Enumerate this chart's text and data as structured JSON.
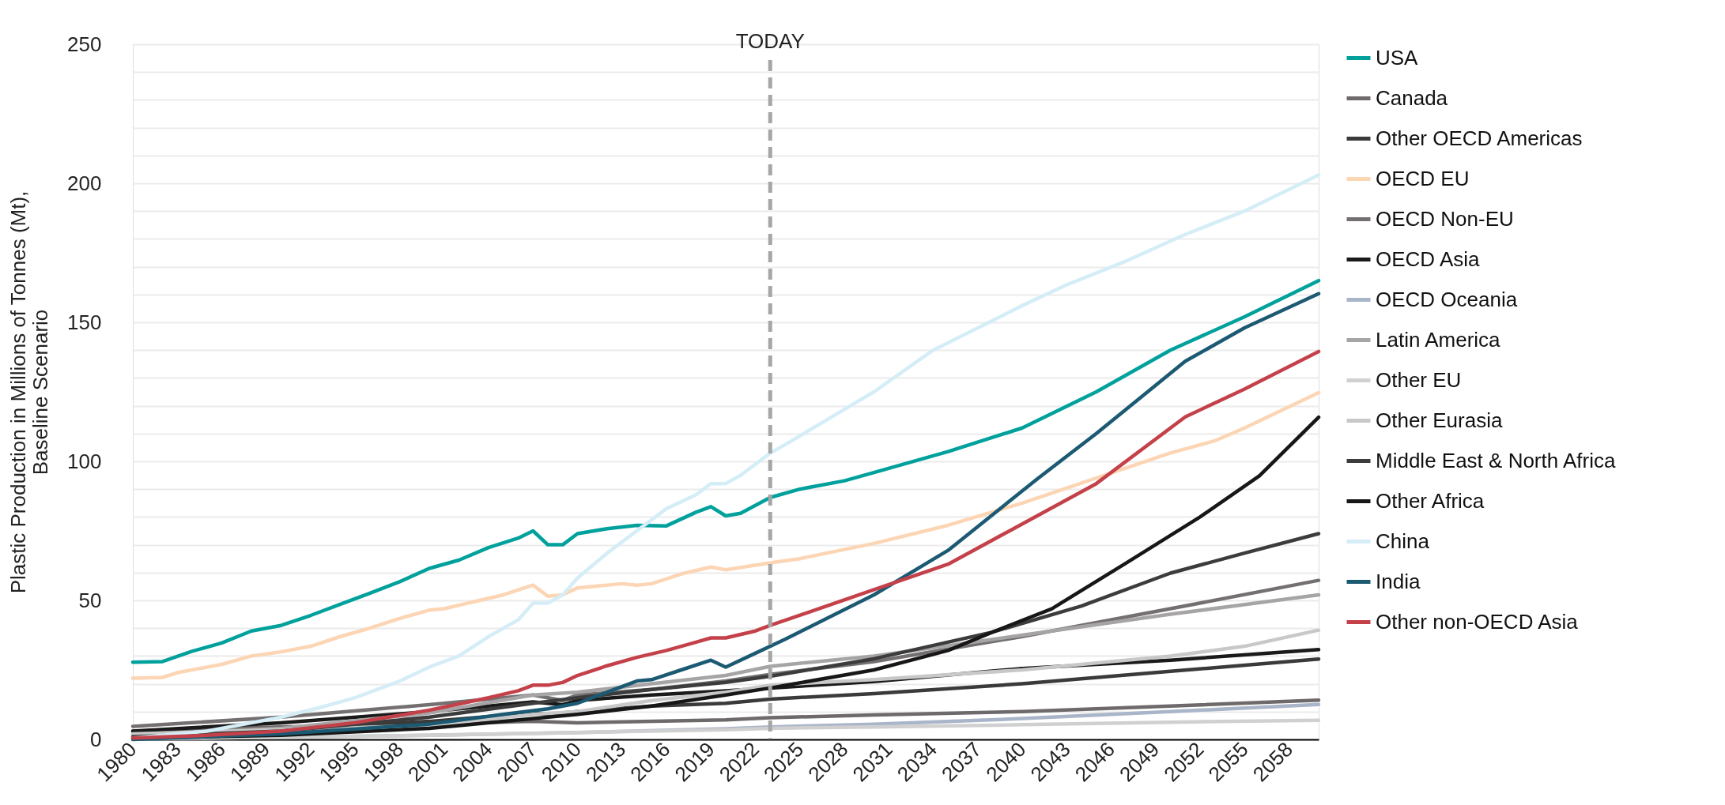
{
  "chart_data": {
    "type": "line",
    "ylabel": "Plastic Production in Millions of Tonnes (Mt), Baseline Scenario",
    "xlim": [
      1980,
      2060
    ],
    "xticks": [
      1980,
      1983,
      1986,
      1989,
      1992,
      1995,
      1998,
      2001,
      2004,
      2007,
      2010,
      2013,
      2016,
      2019,
      2022,
      2025,
      2028,
      2031,
      2034,
      2037,
      2040,
      2043,
      2046,
      2049,
      2052,
      2055,
      2058
    ],
    "ylim": [
      0,
      250
    ],
    "yticks": [
      0,
      {
        "value": 10,
        "label": null
      },
      {
        "value": 20,
        "label": null
      },
      {
        "value": 30,
        "label": null
      },
      {
        "value": 40,
        "label": null
      },
      50,
      {
        "value": 60,
        "label": null
      },
      {
        "value": 70,
        "label": null
      },
      {
        "value": 80,
        "label": null
      },
      {
        "value": 90,
        "label": null
      },
      100,
      {
        "value": 110,
        "label": null
      },
      {
        "value": 120,
        "label": null
      },
      {
        "value": 130,
        "label": null
      },
      {
        "value": 140,
        "label": null
      },
      150,
      {
        "value": 160,
        "label": null
      },
      {
        "value": 170,
        "label": null
      },
      {
        "value": 180,
        "label": null
      },
      {
        "value": 190,
        "label": null
      },
      200,
      {
        "value": 210,
        "label": null
      },
      {
        "value": 220,
        "label": null
      },
      {
        "value": 230,
        "label": null
      },
      {
        "value": 240,
        "label": null
      },
      250
    ],
    "grid": "y",
    "legend": "right",
    "marker": "none",
    "line_style": "solid",
    "ref_lines": [
      {
        "axis": "x",
        "value": 2023,
        "label": "TODAY",
        "color": "#a6a6a6",
        "line_style": "dashed"
      }
    ],
    "series": [
      {
        "name": "USA",
        "color": "#00a19c",
        "x": [
          1980,
          1982,
          1984,
          1986,
          1988,
          1990,
          1992,
          1994,
          1996,
          1998,
          2000,
          2002,
          2004,
          2006,
          2007,
          2008,
          2009,
          2010,
          2012,
          2014,
          2016,
          2018,
          2019,
          2020,
          2021,
          2023,
          2025,
          2028,
          2030,
          2035,
          2040,
          2045,
          2050,
          2055,
          2060
        ],
        "values": [
          27.8,
          28,
          31.7,
          34.7,
          39,
          41,
          44.6,
          48.6,
          52.6,
          56.7,
          61.5,
          64.5,
          69,
          72.4,
          75,
          70,
          70,
          74,
          75.8,
          77,
          76.8,
          81.7,
          83.7,
          80.4,
          81.3,
          87,
          90,
          93,
          96,
          103.5,
          112,
          125,
          140,
          152,
          165
        ]
      },
      {
        "name": "Canada",
        "color": "#6e6a6b",
        "x": [
          1980,
          1990,
          2000,
          2007,
          2010,
          2020,
          2023,
          2030,
          2040,
          2050,
          2060
        ],
        "values": [
          3,
          4.5,
          5.5,
          6.5,
          6,
          7,
          7.8,
          8.8,
          10,
          12,
          14.1
        ]
      },
      {
        "name": "Other OECD Americas",
        "color": "#3a3a3a",
        "x": [
          1980,
          1990,
          2000,
          2007,
          2008,
          2010,
          2015,
          2020,
          2023,
          2030,
          2040,
          2050,
          2060
        ],
        "values": [
          1,
          3.5,
          6.5,
          9.5,
          9,
          10,
          12,
          13,
          14.5,
          16.5,
          20,
          24.5,
          28.9
        ]
      },
      {
        "name": "OECD EU",
        "color": "#fcd5b4",
        "x": [
          1980,
          1982,
          1983,
          1986,
          1988,
          1990,
          1992,
          1994,
          1996,
          1998,
          2000,
          2001,
          2003,
          2005,
          2007,
          2008,
          2009,
          2010,
          2013,
          2014,
          2015,
          2017,
          2019,
          2020,
          2023,
          2025,
          2030,
          2035,
          2040,
          2045,
          2050,
          2053,
          2055,
          2060
        ],
        "values": [
          22,
          22.3,
          24,
          27,
          30,
          31.5,
          33.5,
          37,
          40,
          43.5,
          46.5,
          47,
          49.5,
          52,
          55.5,
          51.5,
          52,
          54.5,
          56,
          55.5,
          56,
          59.5,
          62,
          61,
          63.5,
          65,
          70.5,
          77,
          85,
          94,
          103,
          107.4,
          112,
          124.7
        ]
      },
      {
        "name": "OECD Non-EU",
        "color": "#747071",
        "x": [
          1980,
          1990,
          2000,
          2007,
          2009,
          2010,
          2015,
          2020,
          2023,
          2030,
          2040,
          2050,
          2060
        ],
        "values": [
          4.7,
          8,
          12.5,
          16,
          14,
          16,
          18,
          21,
          23.4,
          28,
          37,
          47,
          57.2
        ]
      },
      {
        "name": "OECD Asia",
        "color": "#1a1a1a",
        "x": [
          1980,
          1990,
          2000,
          2007,
          2009,
          2010,
          2015,
          2020,
          2023,
          2030,
          2040,
          2050,
          2060
        ],
        "values": [
          3,
          6,
          10,
          13.5,
          12.5,
          14,
          16,
          17.5,
          18.5,
          20.8,
          25.5,
          28.5,
          32.3
        ]
      },
      {
        "name": "OECD Oceania",
        "color": "#a9b5c8",
        "x": [
          1980,
          1990,
          2000,
          2010,
          2020,
          2023,
          2030,
          2040,
          2050,
          2060
        ],
        "values": [
          0.2,
          0.8,
          1.5,
          2.5,
          3.8,
          4.5,
          5.5,
          7.5,
          10,
          12.6
        ]
      },
      {
        "name": "Latin America",
        "color": "#a6a4a5",
        "x": [
          1980,
          1990,
          2000,
          2007,
          2010,
          2015,
          2020,
          2023,
          2030,
          2040,
          2050,
          2060
        ],
        "values": [
          1.5,
          4,
          9.5,
          16,
          17,
          20,
          23,
          26.3,
          30,
          37.5,
          45,
          52
        ]
      },
      {
        "name": "Other EU",
        "color": "#d0d0d0",
        "x": [
          1980,
          1990,
          2000,
          2010,
          2020,
          2023,
          2030,
          2040,
          2050,
          2060
        ],
        "values": [
          0.3,
          0.8,
          1.5,
          2.5,
          3.5,
          4,
          4.5,
          5.3,
          6.2,
          6.9
        ]
      },
      {
        "name": "Other Eurasia",
        "color": "#c8c8c8",
        "x": [
          1980,
          1990,
          2000,
          2007,
          2010,
          2015,
          2020,
          2023,
          2030,
          2040,
          2050,
          2055,
          2060
        ],
        "values": [
          2,
          3.5,
          5,
          9,
          10,
          14,
          17,
          19.5,
          21.5,
          25,
          30,
          33.5,
          39.3
        ]
      },
      {
        "name": "Middle East & North Africa",
        "color": "#3c3c3c",
        "x": [
          1980,
          1990,
          2000,
          2007,
          2010,
          2015,
          2020,
          2023,
          2030,
          2038,
          2044,
          2050,
          2055,
          2060
        ],
        "values": [
          1,
          3,
          8,
          13,
          15,
          18,
          20.5,
          22.7,
          29,
          38.6,
          48,
          59.8,
          67,
          74
        ]
      },
      {
        "name": "Other Africa",
        "color": "#171717",
        "x": [
          1980,
          1990,
          2000,
          2010,
          2015,
          2020,
          2023,
          2030,
          2035,
          2038,
          2042,
          2047,
          2052,
          2056,
          2060
        ],
        "values": [
          0.5,
          1.5,
          4,
          9,
          12,
          16,
          18.5,
          25,
          32,
          38.6,
          47,
          63.4,
          80,
          94.8,
          115.9
        ]
      },
      {
        "name": "China",
        "color": "#d4edf7",
        "x": [
          1980,
          1985,
          1990,
          1993,
          1995,
          1998,
          2000,
          2002,
          2004,
          2006,
          2007,
          2008,
          2009,
          2010,
          2012,
          2014,
          2016,
          2018,
          2019,
          2020,
          2021,
          2023,
          2024,
          2030,
          2034,
          2040,
          2043,
          2047,
          2051,
          2055,
          2060
        ],
        "values": [
          0.5,
          3,
          8,
          12,
          15,
          21,
          26,
          30,
          37,
          43,
          49,
          49,
          52,
          58,
          67,
          75,
          83,
          88,
          92,
          92,
          95,
          103,
          106,
          125,
          140,
          156,
          163.5,
          172,
          181.6,
          190,
          203
        ]
      },
      {
        "name": "India",
        "color": "#1b5a72",
        "x": [
          1980,
          1990,
          2000,
          2005,
          2008,
          2010,
          2012,
          2014,
          2015,
          2017,
          2019,
          2020,
          2022,
          2024,
          2030,
          2035,
          2041,
          2045,
          2051,
          2055,
          2060
        ],
        "values": [
          0,
          2,
          5.5,
          9,
          11,
          13,
          17,
          21,
          21.5,
          25,
          28.5,
          26,
          31,
          36,
          52,
          68,
          93.6,
          110,
          136,
          148,
          160.3
        ]
      },
      {
        "name": "Other non-OECD Asia",
        "color": "#c4414a",
        "x": [
          1980,
          1985,
          1990,
          1995,
          2000,
          2004,
          2006,
          2007,
          2008,
          2009,
          2010,
          2012,
          2014,
          2016,
          2018,
          2019,
          2020,
          2022,
          2023,
          2029,
          2035,
          2039,
          2045,
          2051,
          2055,
          2060
        ],
        "values": [
          0.5,
          1.5,
          3,
          6,
          10.5,
          15,
          17.5,
          19.5,
          19.5,
          20.5,
          23,
          26.5,
          29.5,
          32,
          35,
          36.5,
          36.5,
          39,
          41,
          52,
          63,
          74.6,
          92,
          116,
          126,
          139.5
        ]
      }
    ]
  }
}
